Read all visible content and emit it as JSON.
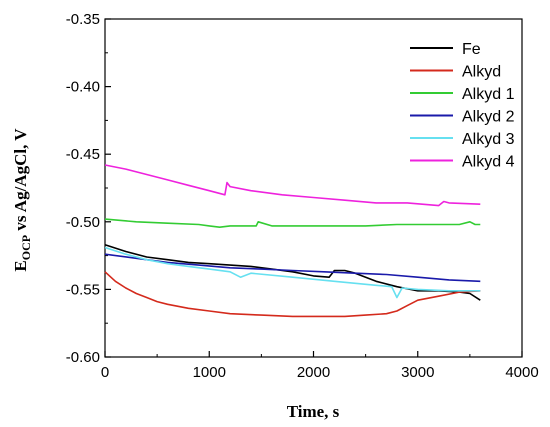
{
  "chart_data": {
    "type": "line",
    "title": "",
    "xlabel": "Time, s",
    "ylabel_main": "E",
    "ylabel_sub": "OCP",
    "ylabel_rest": " vs Ag/AgCl, V",
    "xlim": [
      0,
      4000
    ],
    "ylim": [
      -0.6,
      -0.35
    ],
    "xticks": [
      0,
      1000,
      2000,
      3000,
      4000
    ],
    "yticks": [
      -0.35,
      -0.4,
      -0.45,
      -0.5,
      -0.55,
      -0.6
    ],
    "xtick_labels": [
      "0",
      "1000",
      "2000",
      "3000",
      "4000"
    ],
    "ytick_labels": [
      "-0.35",
      "-0.40",
      "-0.45",
      "-0.50",
      "-0.55",
      "-0.60"
    ],
    "grid": false,
    "legend_position": "top-right",
    "series": [
      {
        "name": "Fe",
        "color": "#000000",
        "x": [
          0,
          200,
          400,
          600,
          800,
          1000,
          1200,
          1400,
          1600,
          1800,
          2000,
          2150,
          2200,
          2300,
          2400,
          2600,
          2800,
          3000,
          3200,
          3400,
          3500,
          3600
        ],
        "y": [
          -0.517,
          -0.522,
          -0.526,
          -0.528,
          -0.53,
          -0.531,
          -0.532,
          -0.533,
          -0.535,
          -0.537,
          -0.54,
          -0.541,
          -0.536,
          -0.536,
          -0.538,
          -0.544,
          -0.548,
          -0.551,
          -0.551,
          -0.552,
          -0.553,
          -0.558
        ]
      },
      {
        "name": "Alkyd",
        "color": "#d42a1c",
        "x": [
          0,
          100,
          200,
          300,
          400,
          500,
          600,
          800,
          1000,
          1200,
          1500,
          1800,
          2000,
          2300,
          2500,
          2700,
          2800,
          2900,
          3000,
          3200,
          3400,
          3600
        ],
        "y": [
          -0.537,
          -0.544,
          -0.549,
          -0.553,
          -0.556,
          -0.559,
          -0.561,
          -0.564,
          -0.566,
          -0.568,
          -0.569,
          -0.57,
          -0.57,
          -0.57,
          -0.569,
          -0.568,
          -0.566,
          -0.562,
          -0.558,
          -0.555,
          -0.552,
          -0.551
        ]
      },
      {
        "name": "Alkyd 1",
        "color": "#33cc33",
        "x": [
          0,
          300,
          600,
          900,
          1000,
          1100,
          1200,
          1300,
          1450,
          1470,
          1600,
          1900,
          2200,
          2500,
          2800,
          3100,
          3400,
          3500,
          3550,
          3600
        ],
        "y": [
          -0.498,
          -0.5,
          -0.501,
          -0.502,
          -0.503,
          -0.504,
          -0.503,
          -0.503,
          -0.503,
          -0.5,
          -0.503,
          -0.503,
          -0.503,
          -0.503,
          -0.502,
          -0.502,
          -0.502,
          -0.5,
          -0.502,
          -0.502
        ]
      },
      {
        "name": "Alkyd 2",
        "color": "#1a1aaa",
        "x": [
          0,
          300,
          600,
          900,
          1200,
          1500,
          1800,
          2100,
          2400,
          2700,
          3000,
          3300,
          3600
        ],
        "y": [
          -0.524,
          -0.527,
          -0.53,
          -0.532,
          -0.534,
          -0.535,
          -0.536,
          -0.537,
          -0.538,
          -0.539,
          -0.541,
          -0.543,
          -0.544
        ]
      },
      {
        "name": "Alkyd 3",
        "color": "#66e0f0",
        "x": [
          0,
          200,
          400,
          600,
          800,
          1000,
          1200,
          1300,
          1400,
          1800,
          2200,
          2600,
          2750,
          2800,
          2850,
          3000,
          3300,
          3600
        ],
        "y": [
          -0.519,
          -0.524,
          -0.528,
          -0.531,
          -0.533,
          -0.535,
          -0.537,
          -0.541,
          -0.538,
          -0.541,
          -0.544,
          -0.547,
          -0.548,
          -0.556,
          -0.549,
          -0.55,
          -0.551,
          -0.551
        ]
      },
      {
        "name": "Alkyd 4",
        "color": "#ee22dd",
        "x": [
          0,
          200,
          400,
          600,
          800,
          1000,
          1150,
          1170,
          1200,
          1400,
          1700,
          2000,
          2300,
          2600,
          2900,
          3200,
          3250,
          3300,
          3600
        ],
        "y": [
          -0.458,
          -0.461,
          -0.465,
          -0.469,
          -0.473,
          -0.477,
          -0.48,
          -0.471,
          -0.474,
          -0.477,
          -0.48,
          -0.482,
          -0.484,
          -0.486,
          -0.486,
          -0.488,
          -0.485,
          -0.486,
          -0.487
        ]
      }
    ]
  }
}
